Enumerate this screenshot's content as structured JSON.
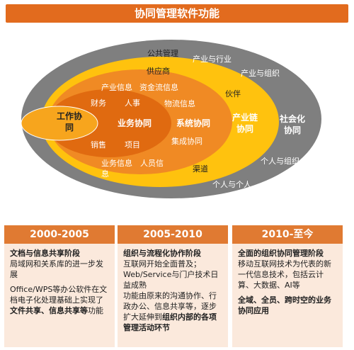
{
  "title": "协同管理软件功能",
  "diagram": {
    "rings": {
      "outer": "社会化\n协同",
      "yellow": "产业链\n协同",
      "orange": "系统协同",
      "darkorange": "业务协同",
      "core": "工作协\n同"
    },
    "labels": {
      "public_mgmt": "公共管理",
      "industry_sector": "产业与行业",
      "industry_org": "产业与组织",
      "org_individual": "个人与组织",
      "individual_individual": "个人与个人",
      "supplier": "供应商",
      "partner": "伙伴",
      "channel": "渠道",
      "industry_info": "产业信息",
      "capital_info": "资金流信息",
      "logistics_info": "物流信息",
      "integration": "集成协同",
      "business_info": "业务信息",
      "personnel_info": "人员信",
      "personnel_info_tail": "息",
      "finance": "财务",
      "hr": "人事",
      "sales": "销售",
      "project": "项目"
    }
  },
  "columns": [
    {
      "period": "2000-2005",
      "stage": "文档与信息共享阶段",
      "desc1": "局域网和关系库的进一步发展",
      "desc2_pre": "Office/WPS等办公软件在文档电子化处理基础上实现了",
      "desc2_bold": "文件共享、信息共享等",
      "desc2_post": "功能"
    },
    {
      "period": "2005-2010",
      "stage": "组织与流程化协作阶段",
      "desc1": "互联网开始全面普及；Web/Service与门户技术日益成熟",
      "desc2_pre": "功能由原来的沟通协作、行政办公、信息共享等，逐步扩大延伸到",
      "desc2_bold": "组织内部的各项管理活动环节",
      "desc2_post": ""
    },
    {
      "period": "2010-至今",
      "stage": "全面的组织协同管理阶段",
      "desc1": "移动互联网技术为代表的新一代信息技术，包括云计算、大数据、AI等",
      "desc2_bold": "全域、全员、跨时空的业务协同应用"
    }
  ]
}
